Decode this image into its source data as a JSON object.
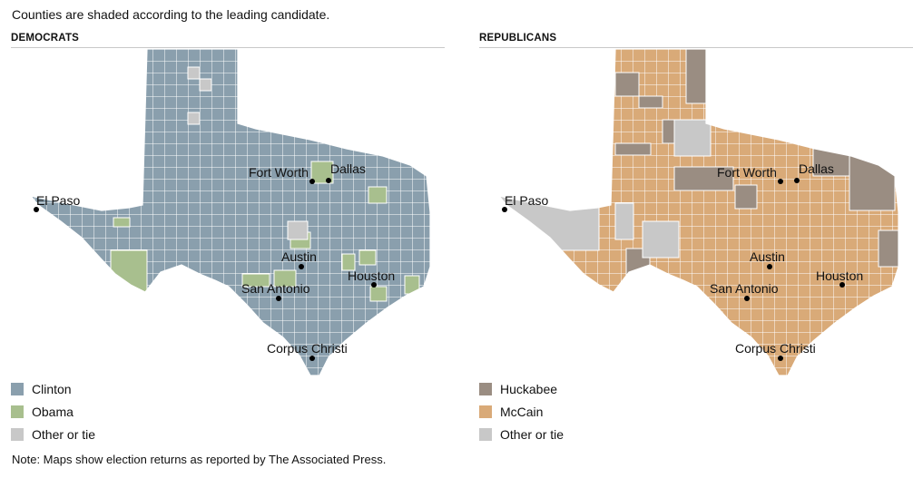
{
  "intro": "Counties are shaded according to the leading candidate.",
  "note": "Note: Maps show election returns as reported by The Associated Press.",
  "cities": [
    "El Paso",
    "Fort Worth",
    "Dallas",
    "Austin",
    "San Antonio",
    "Houston",
    "Corpus Christi"
  ],
  "democrats": {
    "title": "DEMOCRATS",
    "base_color": "#8a9fad",
    "legend": [
      {
        "label": "Clinton",
        "color": "#8a9fad"
      },
      {
        "label": "Obama",
        "color": "#a8bf8e"
      },
      {
        "label": "Other or tie",
        "color": "#c8c8c8"
      }
    ]
  },
  "republicans": {
    "title": "REPUBLICANS",
    "base_color": "#d9aa78",
    "legend": [
      {
        "label": "Huckabee",
        "color": "#9a8d82"
      },
      {
        "label": "McCain",
        "color": "#d9aa78"
      },
      {
        "label": "Other or tie",
        "color": "#c8c8c8"
      }
    ]
  }
}
